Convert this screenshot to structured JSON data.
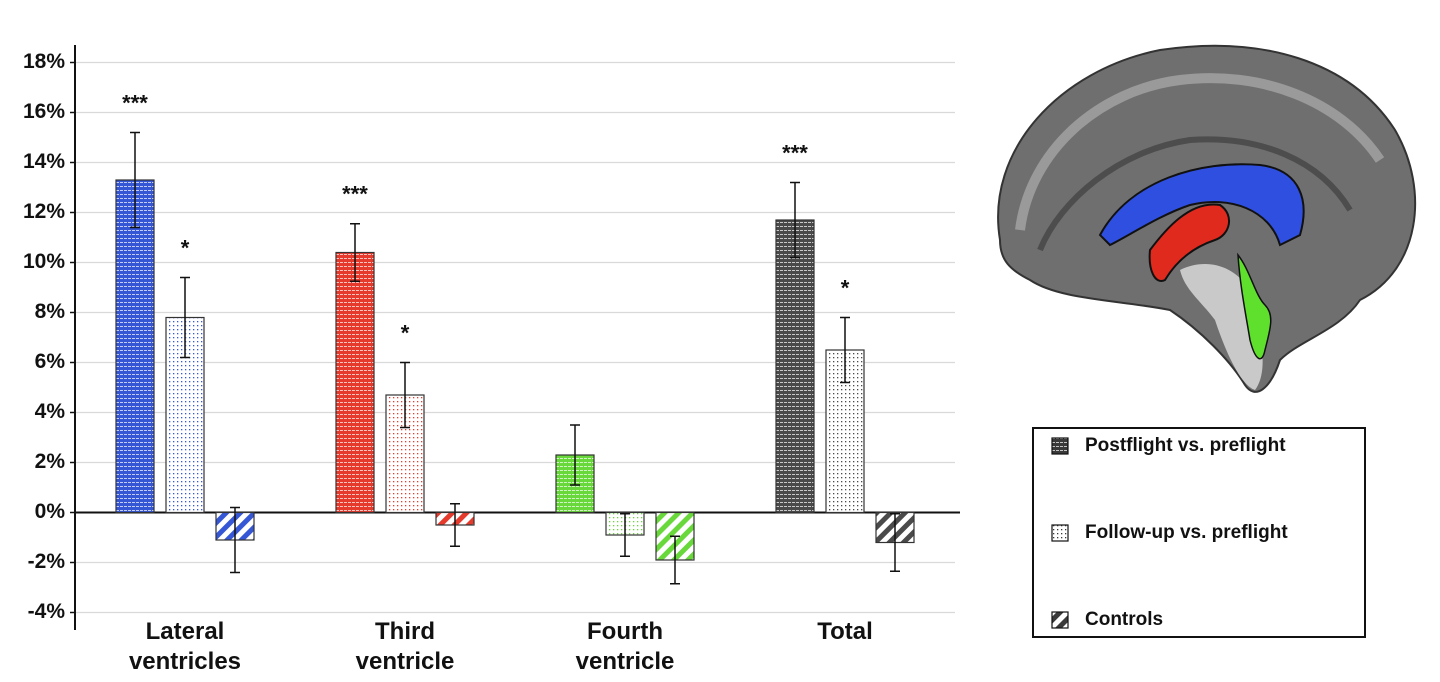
{
  "chart_data": {
    "type": "bar",
    "categories": [
      "Lateral ventricles",
      "Third ventricle",
      "Fourth ventricle",
      "Total"
    ],
    "category_colors": [
      "#3557d6",
      "#e53a2c",
      "#69d83b",
      "#4a4a4a"
    ],
    "series": [
      {
        "name": "Postflight vs. preflight",
        "values": [
          13.3,
          10.4,
          2.3,
          11.7
        ],
        "errors": [
          1.9,
          1.15,
          1.2,
          1.5
        ],
        "significance": [
          "***",
          "***",
          null,
          "***"
        ]
      },
      {
        "name": "Follow-up vs. preflight",
        "values": [
          7.8,
          4.7,
          -0.9,
          6.5
        ],
        "errors": [
          1.6,
          1.3,
          0.85,
          1.3
        ],
        "significance": [
          "*",
          "*",
          null,
          "*"
        ]
      },
      {
        "name": "Controls",
        "values": [
          -1.1,
          -0.5,
          -1.9,
          -1.2
        ],
        "errors": [
          1.3,
          0.85,
          0.95,
          1.15
        ],
        "significance": [
          null,
          null,
          null,
          null
        ]
      }
    ],
    "ylim": [
      -4.7,
      18.7
    ],
    "yticks": [
      {
        "value": -4,
        "label": "-4%"
      },
      {
        "value": -2,
        "label": "-2%"
      },
      {
        "value": 0,
        "label": "0%"
      },
      {
        "value": 2,
        "label": "2%"
      },
      {
        "value": 4,
        "label": "4%"
      },
      {
        "value": 6,
        "label": "6%"
      },
      {
        "value": 8,
        "label": "8%"
      },
      {
        "value": 10,
        "label": "10%"
      },
      {
        "value": 12,
        "label": "12%"
      },
      {
        "value": 14,
        "label": "14%"
      },
      {
        "value": 16,
        "label": "16%"
      },
      {
        "value": 18,
        "label": "18%"
      }
    ],
    "grid": true
  }
}
